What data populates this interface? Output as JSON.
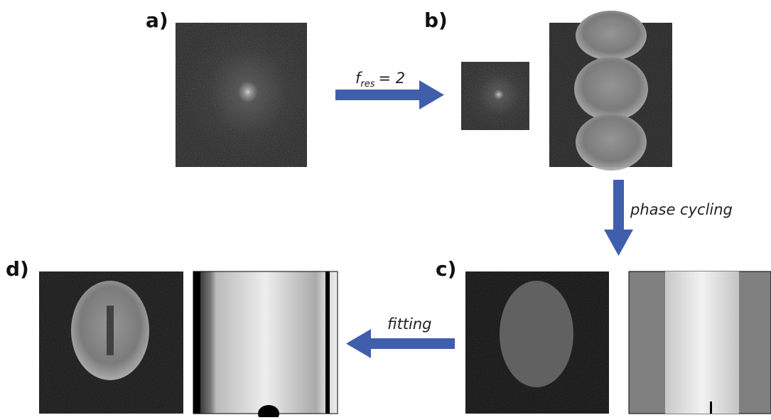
{
  "panels": [
    {
      "label": "a)"
    },
    {
      "label": "b)"
    },
    {
      "label": "c)"
    },
    {
      "label": "d)"
    }
  ],
  "arrows": [
    {
      "label_parts": [
        "f",
        "res",
        "= 2"
      ]
    },
    {
      "label": "phase cycling"
    },
    {
      "label": "fitting"
    }
  ]
}
